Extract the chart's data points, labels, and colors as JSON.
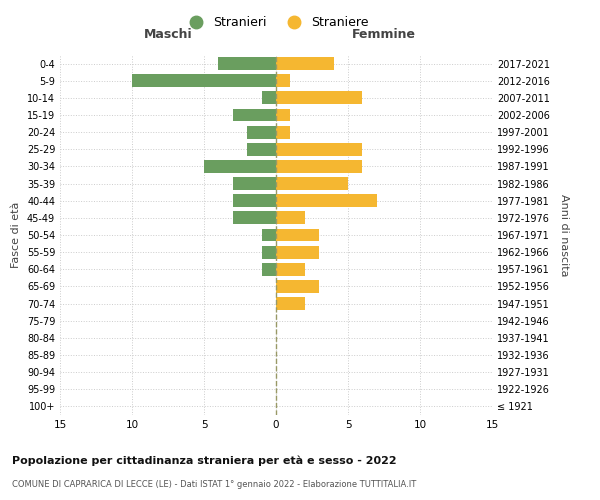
{
  "age_groups": [
    "100+",
    "95-99",
    "90-94",
    "85-89",
    "80-84",
    "75-79",
    "70-74",
    "65-69",
    "60-64",
    "55-59",
    "50-54",
    "45-49",
    "40-44",
    "35-39",
    "30-34",
    "25-29",
    "20-24",
    "15-19",
    "10-14",
    "5-9",
    "0-4"
  ],
  "birth_years": [
    "≤ 1921",
    "1922-1926",
    "1927-1931",
    "1932-1936",
    "1937-1941",
    "1942-1946",
    "1947-1951",
    "1952-1956",
    "1957-1961",
    "1962-1966",
    "1967-1971",
    "1972-1976",
    "1977-1981",
    "1982-1986",
    "1987-1991",
    "1992-1996",
    "1997-2001",
    "2002-2006",
    "2007-2011",
    "2012-2016",
    "2017-2021"
  ],
  "males": [
    0,
    0,
    0,
    0,
    0,
    0,
    0,
    0,
    1,
    1,
    1,
    3,
    3,
    3,
    5,
    2,
    2,
    3,
    1,
    10,
    4
  ],
  "females": [
    0,
    0,
    0,
    0,
    0,
    0,
    2,
    3,
    2,
    3,
    3,
    2,
    7,
    5,
    6,
    6,
    1,
    1,
    6,
    1,
    4
  ],
  "color_males": "#6a9e5f",
  "color_females": "#f5b731",
  "title_main": "Popolazione per cittadinanza straniera per età e sesso - 2022",
  "title_sub": "COMUNE DI CAPRARICA DI LECCE (LE) - Dati ISTAT 1° gennaio 2022 - Elaborazione TUTTITALIA.IT",
  "label_maschi": "Maschi",
  "label_femmine": "Femmine",
  "label_fasciaeta": "Fasce di età",
  "label_anninascita": "Anni di nascita",
  "legend_stranieri": "Stranieri",
  "legend_straniere": "Straniere",
  "xlim": 15,
  "background_color": "#ffffff",
  "grid_color": "#cccccc",
  "dashed_color": "#999966"
}
